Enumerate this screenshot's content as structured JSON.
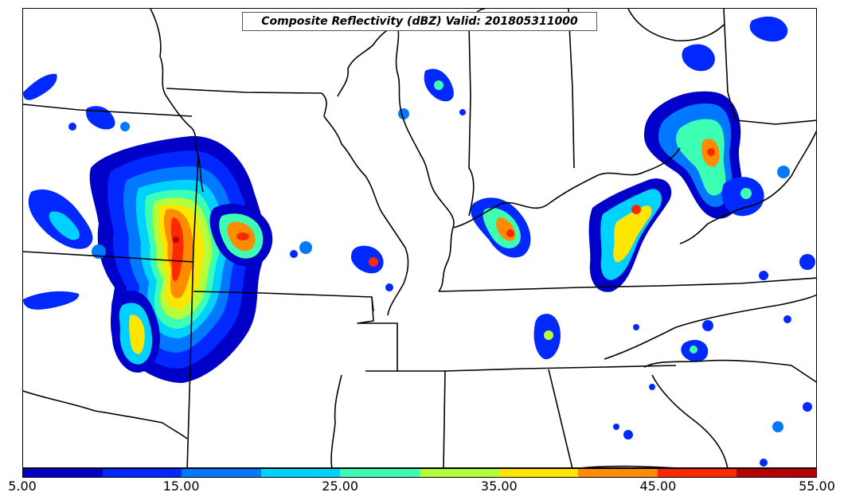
{
  "title": "Composite Reflectivity (dBZ) Valid: 201805311000",
  "colorbar": {
    "colors": [
      "#0000c8",
      "#0028ff",
      "#0078ff",
      "#00d2ff",
      "#3cffb4",
      "#b4ff3c",
      "#ffe600",
      "#ff8c00",
      "#ff2800",
      "#b40000"
    ],
    "tick_labels": [
      "5.00",
      "15.00",
      "25.00",
      "35.00",
      "45.00",
      "55.00"
    ]
  }
}
